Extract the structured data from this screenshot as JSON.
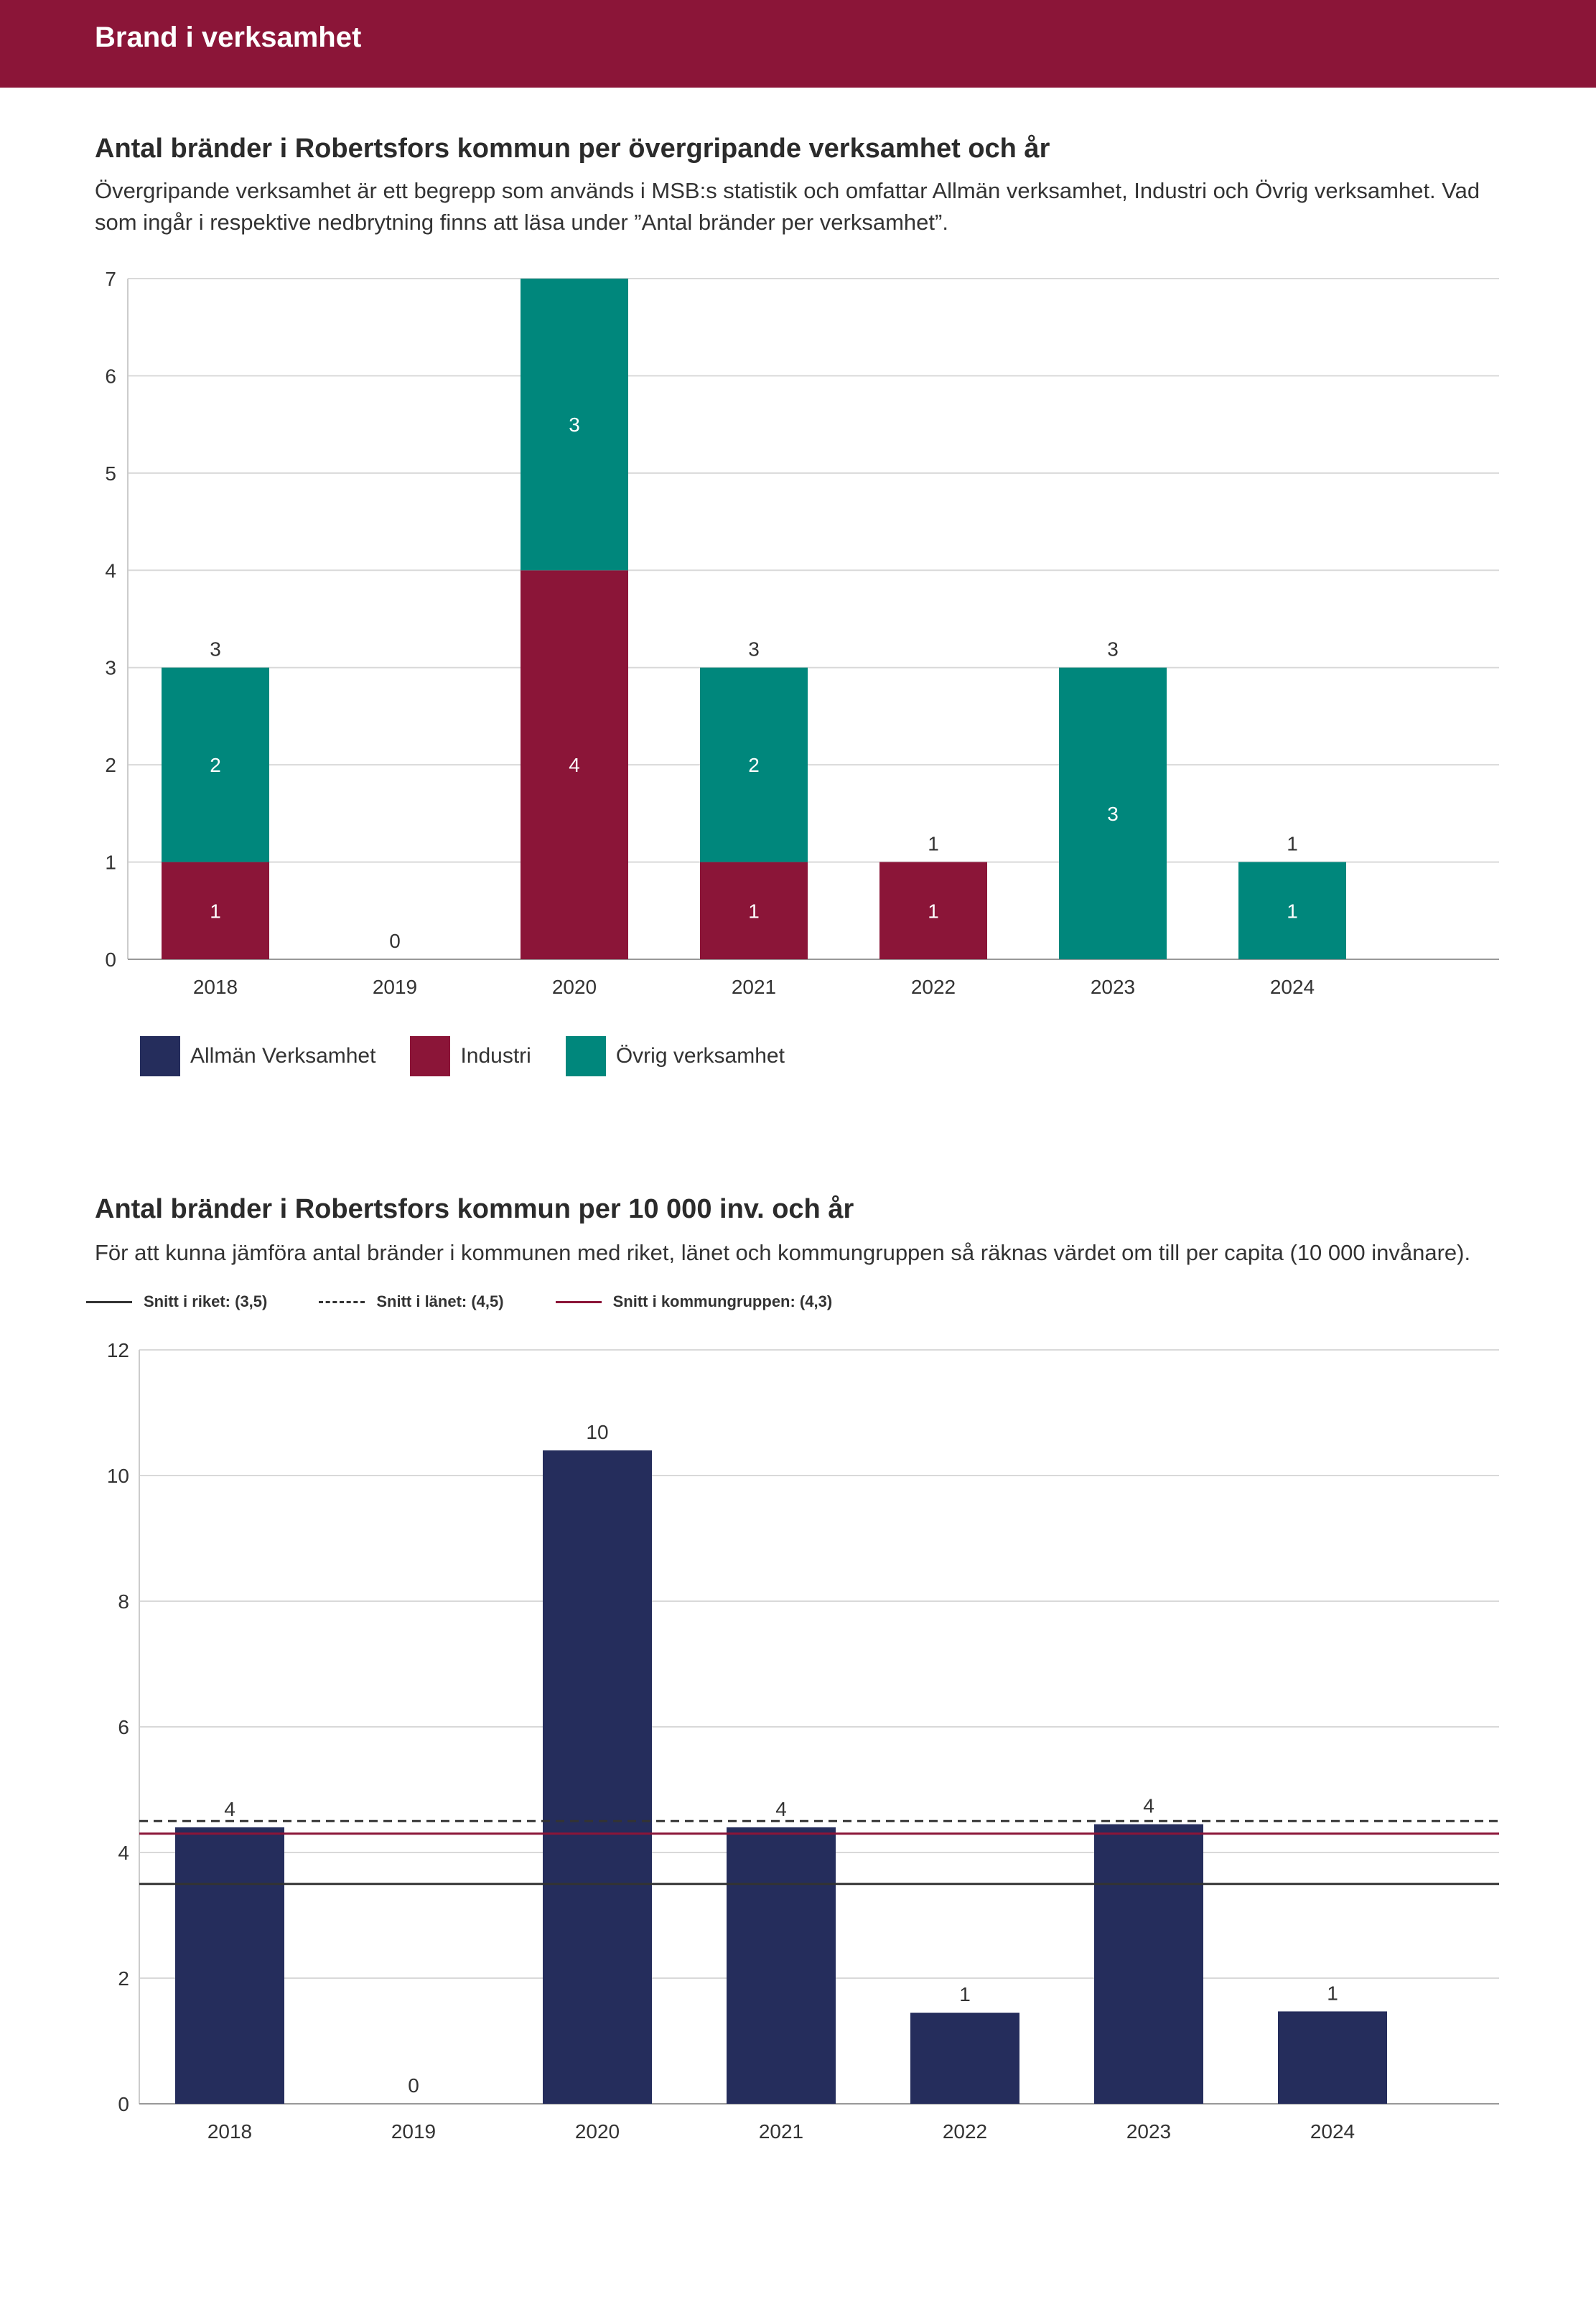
{
  "header": {
    "title": "Brand i verksamhet"
  },
  "section1": {
    "title": "Antal bränder i Robertsfors kommun per övergripande verksamhet och år",
    "description": "Övergripande verksamhet är ett begrepp som används i MSB:s statistik och omfattar Allmän verksamhet, Industri och Övrig verksamhet. Vad som ingår i respektive nedbrytning finns att läsa under ”Antal bränder per verksamhet”."
  },
  "section2": {
    "title": "Antal bränder i Robertsfors kommun per 10 000 inv. och år",
    "description": "För att kunna jämföra antal bränder i kommunen med riket, länet och kommungruppen så räknas värdet om till per capita (10 000 invånare)."
  },
  "colors": {
    "header": "#8b1538",
    "allman": "#252d5c",
    "industri": "#8b1538",
    "ovrig": "#00877c",
    "riket_line": "#333333",
    "lanet_line": "#333333",
    "kommungrupp_line": "#8b1538"
  },
  "chart_data": [
    {
      "type": "bar",
      "stacked": true,
      "title": "Antal bränder i Robertsfors kommun per övergripande verksamhet och år",
      "categories": [
        "2018",
        "2019",
        "2020",
        "2021",
        "2022",
        "2023",
        "2024"
      ],
      "series": [
        {
          "name": "Allmän Verksamhet",
          "values": [
            0,
            0,
            0,
            0,
            0,
            0,
            0
          ]
        },
        {
          "name": "Industri",
          "values": [
            1,
            0,
            4,
            1,
            1,
            0,
            0
          ]
        },
        {
          "name": "Övrig verksamhet",
          "values": [
            2,
            0,
            3,
            2,
            0,
            3,
            1
          ]
        }
      ],
      "totals": [
        3,
        0,
        7,
        3,
        1,
        3,
        1
      ],
      "segment_labels": [
        [
          "",
          "1",
          "2"
        ],
        [
          "",
          "",
          ""
        ],
        [
          "",
          "4",
          "3"
        ],
        [
          "",
          "1",
          "2"
        ],
        [
          "",
          "1",
          ""
        ],
        [
          "",
          "",
          "3"
        ],
        [
          "",
          "",
          "1"
        ]
      ],
      "yticks": [
        "0",
        "1",
        "2",
        "3",
        "4",
        "5",
        "6",
        "7"
      ],
      "ylim": [
        0,
        7
      ],
      "legend_position": "bottom-left"
    },
    {
      "type": "bar",
      "title": "Antal bränder i Robertsfors kommun per 10 000 inv. och år",
      "categories": [
        "2018",
        "2019",
        "2020",
        "2021",
        "2022",
        "2023",
        "2024"
      ],
      "values": [
        4.4,
        0,
        10.4,
        4.4,
        1.45,
        4.45,
        1.47
      ],
      "value_labels": [
        "4",
        "0",
        "10",
        "4",
        "1",
        "4",
        "1"
      ],
      "yticks": [
        "0",
        "2",
        "4",
        "6",
        "8",
        "10",
        "12"
      ],
      "ylim": [
        0,
        12
      ],
      "reference_lines": [
        {
          "name": "Snitt i riket: (3,5)",
          "value": 3.5,
          "style": "solid"
        },
        {
          "name": "Snitt i länet: (4,5)",
          "value": 4.5,
          "style": "dashed"
        },
        {
          "name": "Snitt i kommungruppen: (4,3)",
          "value": 4.3,
          "style": "solid-red"
        }
      ],
      "legend_position": "top-left"
    }
  ]
}
